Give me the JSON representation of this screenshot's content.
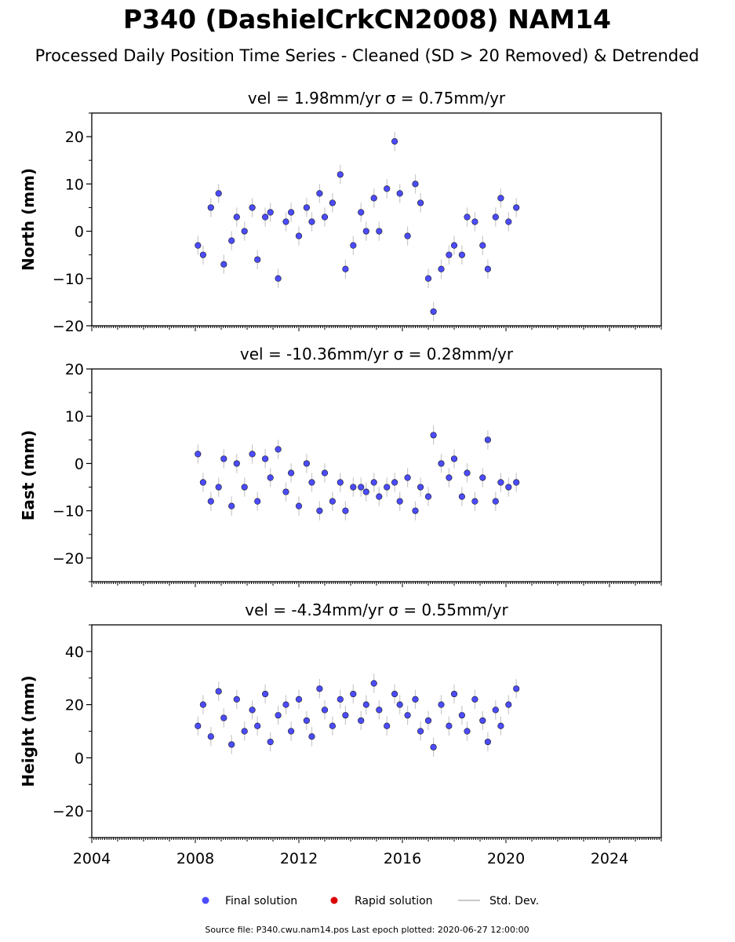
{
  "page": {
    "title": "P340 (DashielCrkCN2008) NAM14",
    "subtitle": "Processed Daily Position Time Series - Cleaned (SD > 20 Removed) & Detrended",
    "footer": "Source file: P340.cwu.nam14.pos  Last epoch plotted: 2020-06-27 12:00:00"
  },
  "colors": {
    "final": "#4b4bff",
    "final_edge": "#1a1a1a",
    "rapid": "#dd0000",
    "stddev": "#c8c8c8",
    "axis": "#000000"
  },
  "legend": {
    "final": "Final solution",
    "rapid": "Rapid solution",
    "stddev": "Std. Dev."
  },
  "chart_data": [
    {
      "type": "scatter",
      "component": "north",
      "title": "vel = 1.98mm/yr   σ = 0.75mm/yr",
      "ylabel": "North (mm)",
      "xlim": [
        2004,
        2026
      ],
      "ylim": [
        -20,
        25
      ],
      "yticks": [
        -20,
        -10,
        0,
        10,
        20
      ],
      "ytick_labels": [
        "−20",
        "−10",
        "0",
        "10",
        "20"
      ],
      "xticks": [
        2004,
        2008,
        2012,
        2016,
        2020,
        2024
      ],
      "xtick_labels": [],
      "series": [
        {
          "name": "Final solution",
          "x": [
            2008.1,
            2008.3,
            2008.6,
            2008.9,
            2009.1,
            2009.4,
            2009.6,
            2009.9,
            2010.2,
            2010.4,
            2010.7,
            2010.9,
            2011.2,
            2011.5,
            2011.7,
            2012.0,
            2012.3,
            2012.5,
            2012.8,
            2013.0,
            2013.3,
            2013.6,
            2013.8,
            2014.1,
            2014.4,
            2014.6,
            2014.9,
            2015.1,
            2015.4,
            2015.7,
            2015.9,
            2016.2,
            2016.5,
            2016.7,
            2017.0,
            2017.2,
            2017.5,
            2017.8,
            2018.0,
            2018.3,
            2018.5,
            2018.8,
            2019.1,
            2019.3,
            2019.6,
            2019.8,
            2020.1,
            2020.4
          ],
          "y": [
            -3,
            -5,
            5,
            8,
            -7,
            -2,
            3,
            0,
            5,
            -6,
            3,
            4,
            -10,
            2,
            4,
            -1,
            5,
            2,
            8,
            3,
            6,
            12,
            -8,
            -3,
            4,
            0,
            7,
            0,
            9,
            19,
            8,
            -1,
            10,
            6,
            -10,
            -17,
            -8,
            -5,
            -3,
            -5,
            3,
            2,
            -3,
            -8,
            3,
            7,
            2,
            5
          ]
        }
      ]
    },
    {
      "type": "scatter",
      "component": "east",
      "title": "vel = -10.36mm/yr   σ = 0.28mm/yr",
      "ylabel": "East (mm)",
      "xlim": [
        2004,
        2026
      ],
      "ylim": [
        -25,
        20
      ],
      "yticks": [
        -20,
        -10,
        0,
        10,
        20
      ],
      "ytick_labels": [
        "−20",
        "−10",
        "0",
        "10",
        "20"
      ],
      "xticks": [
        2004,
        2008,
        2012,
        2016,
        2020,
        2024
      ],
      "xtick_labels": [],
      "series": [
        {
          "name": "Final solution",
          "x": [
            2008.1,
            2008.3,
            2008.6,
            2008.9,
            2009.1,
            2009.4,
            2009.6,
            2009.9,
            2010.2,
            2010.4,
            2010.7,
            2010.9,
            2011.2,
            2011.5,
            2011.7,
            2012.0,
            2012.3,
            2012.5,
            2012.8,
            2013.0,
            2013.3,
            2013.6,
            2013.8,
            2014.1,
            2014.4,
            2014.6,
            2014.9,
            2015.1,
            2015.4,
            2015.7,
            2015.9,
            2016.2,
            2016.5,
            2016.7,
            2017.0,
            2017.2,
            2017.5,
            2017.8,
            2018.0,
            2018.3,
            2018.5,
            2018.8,
            2019.1,
            2019.3,
            2019.6,
            2019.8,
            2020.1,
            2020.4
          ],
          "y": [
            2,
            -4,
            -8,
            -5,
            1,
            -9,
            0,
            -5,
            2,
            -8,
            1,
            -3,
            3,
            -6,
            -2,
            -9,
            0,
            -4,
            -10,
            -2,
            -8,
            -4,
            -10,
            -5,
            -5,
            -6,
            -4,
            -7,
            -5,
            -4,
            -8,
            -3,
            -10,
            -5,
            -7,
            6,
            0,
            -3,
            1,
            -7,
            -2,
            -8,
            -3,
            5,
            -8,
            -4,
            -5,
            -4
          ]
        }
      ]
    },
    {
      "type": "scatter",
      "component": "height",
      "title": "vel = -4.34mm/yr   σ = 0.55mm/yr",
      "ylabel": "Height (mm)",
      "xlim": [
        2004,
        2026
      ],
      "ylim": [
        -30,
        50
      ],
      "yticks": [
        -20,
        0,
        20,
        40
      ],
      "ytick_labels": [
        "−20",
        "0",
        "20",
        "40"
      ],
      "xticks": [
        2004,
        2008,
        2012,
        2016,
        2020,
        2024
      ],
      "xtick_labels": [
        "2004",
        "2008",
        "2012",
        "2016",
        "2020",
        "2024"
      ],
      "series": [
        {
          "name": "Final solution",
          "x": [
            2008.1,
            2008.3,
            2008.6,
            2008.9,
            2009.1,
            2009.4,
            2009.6,
            2009.9,
            2010.2,
            2010.4,
            2010.7,
            2010.9,
            2011.2,
            2011.5,
            2011.7,
            2012.0,
            2012.3,
            2012.5,
            2012.8,
            2013.0,
            2013.3,
            2013.6,
            2013.8,
            2014.1,
            2014.4,
            2014.6,
            2014.9,
            2015.1,
            2015.4,
            2015.7,
            2015.9,
            2016.2,
            2016.5,
            2016.7,
            2017.0,
            2017.2,
            2017.5,
            2017.8,
            2018.0,
            2018.3,
            2018.5,
            2018.8,
            2019.1,
            2019.3,
            2019.6,
            2019.8,
            2020.1,
            2020.4
          ],
          "y": [
            12,
            20,
            8,
            25,
            15,
            5,
            22,
            10,
            18,
            12,
            24,
            6,
            16,
            20,
            10,
            22,
            14,
            8,
            26,
            18,
            12,
            22,
            16,
            24,
            14,
            20,
            28,
            18,
            12,
            24,
            20,
            16,
            22,
            10,
            14,
            4,
            20,
            12,
            24,
            16,
            10,
            22,
            14,
            6,
            18,
            12,
            20,
            26
          ]
        }
      ]
    }
  ]
}
